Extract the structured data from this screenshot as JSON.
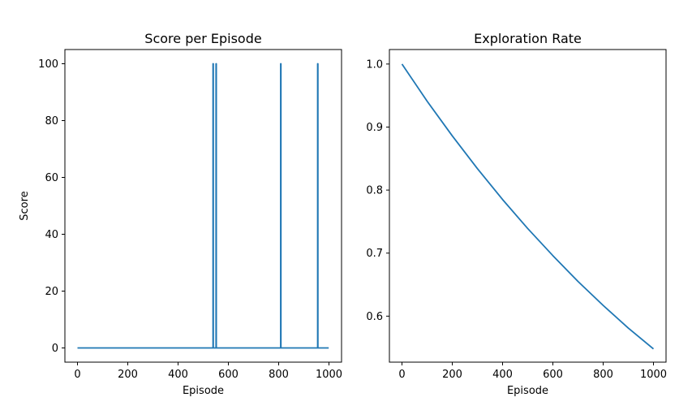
{
  "colors": {
    "series": "#1f77b4"
  },
  "chart_data": [
    {
      "type": "line",
      "title": "Score per Episode",
      "xlabel": "Episode",
      "ylabel": "Score",
      "xlim": [
        -50,
        1050
      ],
      "ylim": [
        -5,
        105
      ],
      "xticks": [
        0,
        200,
        400,
        600,
        800,
        1000
      ],
      "yticks": [
        0,
        20,
        40,
        60,
        80,
        100
      ],
      "grid": false,
      "series": [
        {
          "x": [
            0,
            539,
            539,
            540,
            540,
            551,
            551,
            552,
            552,
            808,
            808,
            809,
            809,
            955,
            955,
            956,
            956,
            999
          ],
          "y": [
            0,
            0,
            100,
            100,
            0,
            0,
            100,
            100,
            0,
            0,
            100,
            100,
            0,
            0,
            100,
            100,
            0,
            0
          ]
        }
      ]
    },
    {
      "type": "line",
      "title": "Exploration Rate",
      "xlabel": "Episode",
      "ylabel": "",
      "xlim": [
        -50,
        1050
      ],
      "ylim": [
        0.527,
        1.023
      ],
      "xticks": [
        0,
        200,
        400,
        600,
        800,
        1000
      ],
      "yticks": [
        0.6,
        0.7,
        0.8,
        0.9,
        1.0
      ],
      "ytick_labels": [
        "0.6",
        "0.7",
        "0.8",
        "0.9",
        "1.0"
      ],
      "grid": false,
      "series": [
        {
          "x": [
            0,
            100,
            200,
            300,
            400,
            500,
            600,
            700,
            800,
            900,
            1000
          ],
          "y": [
            1.0,
            0.941,
            0.886,
            0.834,
            0.785,
            0.739,
            0.696,
            0.655,
            0.617,
            0.581,
            0.548
          ]
        }
      ]
    }
  ]
}
